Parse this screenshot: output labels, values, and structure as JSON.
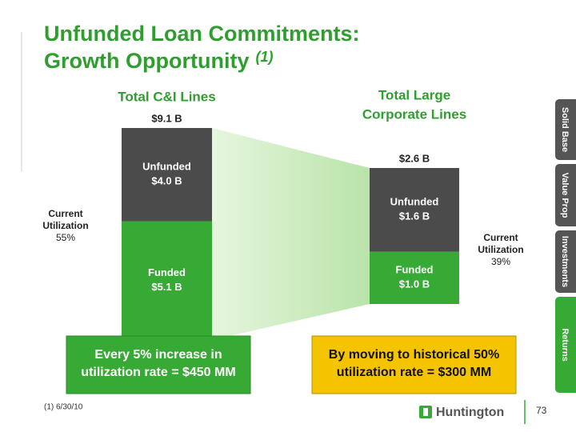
{
  "title": {
    "line1": "Unfunded Loan Commitments:",
    "line2": "Growth Opportunity",
    "note": "(1)"
  },
  "chart_data": [
    {
      "type": "bar",
      "title": [
        "Total C&I Lines"
      ],
      "total": 9.1,
      "total_label": "$9.1 B",
      "ylim": [
        0,
        9.1
      ],
      "series": [
        {
          "name": "Funded",
          "color": "#37a935",
          "values": [
            5.1
          ],
          "value_labels": [
            "$5.1 B"
          ]
        },
        {
          "name": "Unfunded",
          "color": "#4b4b4b",
          "values": [
            4.0
          ],
          "value_labels": [
            "$4.0 B"
          ]
        }
      ],
      "annotation": [
        "Current",
        "Utilization",
        "55%"
      ]
    },
    {
      "type": "bar",
      "title": [
        "Total Large",
        "Corporate Lines"
      ],
      "total": 2.6,
      "total_label": "$2.6 B",
      "ylim": [
        0,
        2.6
      ],
      "series": [
        {
          "name": "Funded",
          "color": "#37a935",
          "values": [
            1.0
          ],
          "value_labels": [
            "$1.0 B"
          ]
        },
        {
          "name": "Unfunded",
          "color": "#4b4b4b",
          "values": [
            1.6
          ],
          "value_labels": [
            "$1.6 B"
          ]
        }
      ],
      "annotation": [
        "Current",
        "Utilization",
        "39%"
      ]
    }
  ],
  "callouts": [
    [
      "Every 5% increase in",
      "utilization rate = $450 MM"
    ],
    [
      "By moving to historical 50%",
      "utilization rate = $300 MM"
    ]
  ],
  "tabs": [
    "Solid Base",
    "Value Prop",
    "Investments",
    "Returns"
  ],
  "footnote": "(1) 6/30/10",
  "logo": "Huntington",
  "page_number": 73
}
